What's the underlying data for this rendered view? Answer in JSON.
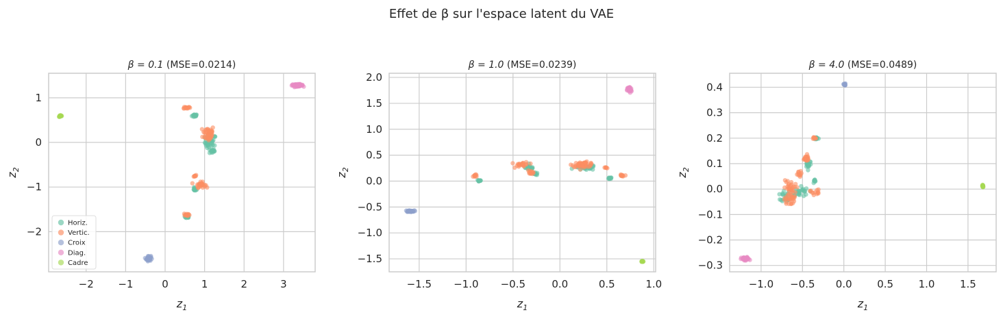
{
  "figure": {
    "title": "Effet de β sur l'espace latent du VAE"
  },
  "colors": {
    "Horiz.": "#66c2a5",
    "Vertic.": "#fc8d62",
    "Croix": "#8da0cb",
    "Diag.": "#e78ac3",
    "Cadre": "#a6d854",
    "grid": "#cccccc",
    "frame": "#cccccc"
  },
  "legend": {
    "placement": "lower-left of first panel",
    "entries": [
      "Horiz.",
      "Vertic.",
      "Croix",
      "Diag.",
      "Cadre"
    ]
  },
  "chart_data": [
    {
      "type": "scatter",
      "title_prefix": "β = 0.1",
      "title_suffix": " (MSE=0.0214)",
      "xlabel": "z",
      "ylabel": "z",
      "xlabel_sub": "1",
      "ylabel_sub": "2",
      "xlim": [
        -2.95,
        3.8
      ],
      "ylim": [
        -2.9,
        1.55
      ],
      "xticks": [
        -2,
        -1,
        0,
        1,
        2,
        3
      ],
      "xtick_labels": [
        "−2",
        "−1",
        "0",
        "1",
        "2",
        "3"
      ],
      "yticks": [
        1,
        0,
        -1,
        -2
      ],
      "ytick_labels": [
        "1",
        "0",
        "−1",
        "−2"
      ],
      "series": [
        {
          "name": "Horiz.",
          "clusters": [
            {
              "x": 0.75,
              "y": 0.6,
              "n": 18,
              "sx": 0.06,
              "sy": 0.03
            },
            {
              "x": 1.15,
              "y": 0.0,
              "n": 40,
              "sx": 0.12,
              "sy": 0.15
            },
            {
              "x": 1.2,
              "y": -0.2,
              "n": 12,
              "sx": 0.05,
              "sy": 0.03
            },
            {
              "x": 0.75,
              "y": -1.05,
              "n": 14,
              "sx": 0.04,
              "sy": 0.03
            },
            {
              "x": 0.55,
              "y": -1.67,
              "n": 20,
              "sx": 0.05,
              "sy": 0.03
            }
          ]
        },
        {
          "name": "Vertic.",
          "clusters": [
            {
              "x": 0.55,
              "y": 0.78,
              "n": 14,
              "sx": 0.07,
              "sy": 0.02
            },
            {
              "x": 1.1,
              "y": 0.2,
              "n": 45,
              "sx": 0.12,
              "sy": 0.15
            },
            {
              "x": 0.75,
              "y": -0.75,
              "n": 8,
              "sx": 0.04,
              "sy": 0.02
            },
            {
              "x": 0.9,
              "y": -0.95,
              "n": 30,
              "sx": 0.1,
              "sy": 0.05
            },
            {
              "x": 0.55,
              "y": -1.62,
              "n": 14,
              "sx": 0.06,
              "sy": 0.03
            }
          ]
        },
        {
          "name": "Croix",
          "clusters": [
            {
              "x": -0.42,
              "y": -2.6,
              "n": 40,
              "sx": 0.05,
              "sy": 0.05
            }
          ]
        },
        {
          "name": "Diag.",
          "clusters": [
            {
              "x": 3.35,
              "y": 1.28,
              "n": 60,
              "sx": 0.12,
              "sy": 0.02
            }
          ]
        },
        {
          "name": "Cadre",
          "clusters": [
            {
              "x": -2.65,
              "y": 0.59,
              "n": 25,
              "sx": 0.03,
              "sy": 0.015
            }
          ]
        }
      ]
    },
    {
      "type": "scatter",
      "title_prefix": "β = 1.0",
      "title_suffix": " (MSE=0.0239)",
      "xlabel": "z",
      "ylabel": "z",
      "xlabel_sub": "1",
      "ylabel_sub": "2",
      "xlim": [
        -1.82,
        1.02
      ],
      "ylim": [
        -1.75,
        2.08
      ],
      "xticks": [
        -1.5,
        -1.0,
        -0.5,
        0.0,
        0.5,
        1.0
      ],
      "xtick_labels": [
        "−1.5",
        "−1.0",
        "−0.5",
        "0.0",
        "0.5",
        "1.0"
      ],
      "yticks": [
        2.0,
        1.5,
        1.0,
        0.5,
        0.0,
        -0.5,
        -1.0,
        -1.5
      ],
      "ytick_labels": [
        "2.0",
        "1.5",
        "1.0",
        "0.5",
        "0.0",
        "−0.5",
        "−1.0",
        "−1.5"
      ],
      "series": [
        {
          "name": "Horiz.",
          "clusters": [
            {
              "x": -0.86,
              "y": 0.01,
              "n": 14,
              "sx": 0.02,
              "sy": 0.02
            },
            {
              "x": -0.32,
              "y": 0.26,
              "n": 20,
              "sx": 0.04,
              "sy": 0.04
            },
            {
              "x": -0.26,
              "y": 0.14,
              "n": 10,
              "sx": 0.03,
              "sy": 0.02
            },
            {
              "x": 0.27,
              "y": 0.26,
              "n": 40,
              "sx": 0.09,
              "sy": 0.04
            },
            {
              "x": 0.53,
              "y": 0.05,
              "n": 10,
              "sx": 0.02,
              "sy": 0.02
            }
          ]
        },
        {
          "name": "Vertic.",
          "clusters": [
            {
              "x": -0.9,
              "y": 0.1,
              "n": 10,
              "sx": 0.02,
              "sy": 0.02
            },
            {
              "x": -0.4,
              "y": 0.32,
              "n": 25,
              "sx": 0.06,
              "sy": 0.04
            },
            {
              "x": -0.31,
              "y": 0.18,
              "n": 12,
              "sx": 0.03,
              "sy": 0.04
            },
            {
              "x": 0.25,
              "y": 0.32,
              "n": 45,
              "sx": 0.1,
              "sy": 0.04
            },
            {
              "x": 0.49,
              "y": 0.26,
              "n": 6,
              "sx": 0.01,
              "sy": 0.01
            },
            {
              "x": 0.66,
              "y": 0.1,
              "n": 10,
              "sx": 0.02,
              "sy": 0.02
            }
          ]
        },
        {
          "name": "Croix",
          "clusters": [
            {
              "x": -1.6,
              "y": -0.58,
              "n": 40,
              "sx": 0.04,
              "sy": 0.012
            }
          ]
        },
        {
          "name": "Diag.",
          "clusters": [
            {
              "x": 0.74,
              "y": 1.76,
              "n": 40,
              "sx": 0.02,
              "sy": 0.05
            }
          ]
        },
        {
          "name": "Cadre",
          "clusters": [
            {
              "x": 0.88,
              "y": -1.55,
              "n": 15,
              "sx": 0.01,
              "sy": 0.01
            }
          ]
        }
      ]
    },
    {
      "type": "scatter",
      "title_prefix": "β = 4.0",
      "title_suffix": " (MSE=0.0489)",
      "xlabel": "z",
      "ylabel": "z",
      "xlabel_sub": "1",
      "ylabel_sub": "2",
      "xlim": [
        -1.38,
        1.84
      ],
      "ylim": [
        -0.325,
        0.455
      ],
      "xticks": [
        -1.0,
        -0.5,
        0.0,
        0.5,
        1.0,
        1.5
      ],
      "xtick_labels": [
        "−1.0",
        "−0.5",
        "0.0",
        "0.5",
        "1.0",
        "1.5"
      ],
      "yticks": [
        0.4,
        0.3,
        0.2,
        0.1,
        0.0,
        -0.1,
        -0.2,
        -0.3
      ],
      "ytick_labels": [
        "0.4",
        "0.3",
        "0.2",
        "0.1",
        "0.0",
        "−0.1",
        "−0.2",
        "−0.3"
      ],
      "series": [
        {
          "name": "Horiz.",
          "clusters": [
            {
              "x": -0.33,
              "y": 0.2,
              "n": 12,
              "sx": 0.02,
              "sy": 0.004
            },
            {
              "x": -0.43,
              "y": 0.1,
              "n": 20,
              "sx": 0.03,
              "sy": 0.015
            },
            {
              "x": -0.35,
              "y": 0.03,
              "n": 8,
              "sx": 0.02,
              "sy": 0.006
            },
            {
              "x": -0.55,
              "y": -0.01,
              "n": 30,
              "sx": 0.1,
              "sy": 0.02
            },
            {
              "x": -0.7,
              "y": -0.03,
              "n": 20,
              "sx": 0.05,
              "sy": 0.015
            }
          ]
        },
        {
          "name": "Vertic.",
          "clusters": [
            {
              "x": -0.36,
              "y": 0.2,
              "n": 8,
              "sx": 0.02,
              "sy": 0.004
            },
            {
              "x": -0.46,
              "y": 0.12,
              "n": 20,
              "sx": 0.04,
              "sy": 0.012
            },
            {
              "x": -0.55,
              "y": 0.06,
              "n": 10,
              "sx": 0.03,
              "sy": 0.01
            },
            {
              "x": -0.65,
              "y": 0.0,
              "n": 30,
              "sx": 0.06,
              "sy": 0.03
            },
            {
              "x": -0.66,
              "y": -0.04,
              "n": 25,
              "sx": 0.05,
              "sy": 0.02
            },
            {
              "x": -0.35,
              "y": -0.01,
              "n": 12,
              "sx": 0.05,
              "sy": 0.01
            }
          ]
        },
        {
          "name": "Croix",
          "clusters": [
            {
              "x": 0.01,
              "y": 0.41,
              "n": 20,
              "sx": 0.01,
              "sy": 0.004
            }
          ]
        },
        {
          "name": "Diag.",
          "clusters": [
            {
              "x": -1.19,
              "y": -0.275,
              "n": 40,
              "sx": 0.04,
              "sy": 0.006
            }
          ]
        },
        {
          "name": "Cadre",
          "clusters": [
            {
              "x": 1.68,
              "y": 0.012,
              "n": 18,
              "sx": 0.008,
              "sy": 0.005
            }
          ]
        }
      ]
    }
  ]
}
